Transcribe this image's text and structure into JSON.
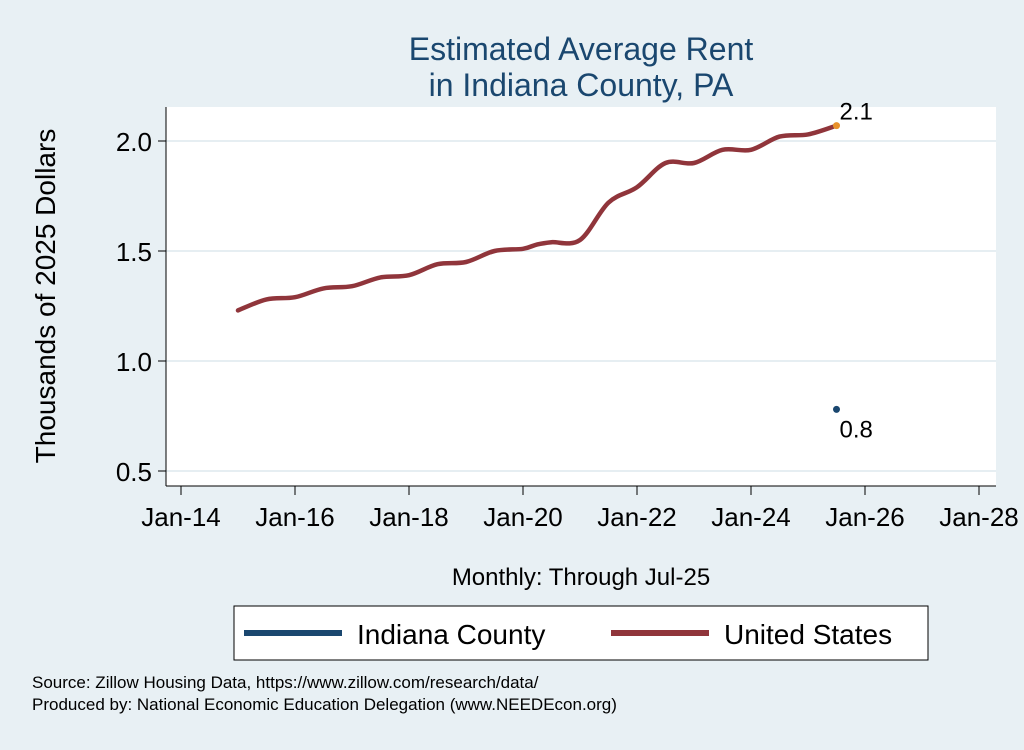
{
  "chart_data": {
    "type": "line",
    "title": [
      "Estimated Average Rent",
      "in Indiana County, PA"
    ],
    "xlabel": "Monthly: Through Jul-25",
    "ylabel": "Thousands of 2025 Dollars",
    "x_ticks": [
      "Jan-14",
      "Jan-16",
      "Jan-18",
      "Jan-20",
      "Jan-22",
      "Jan-24",
      "Jan-26",
      "Jan-28"
    ],
    "xlim": [
      "2014-01",
      "2028-01"
    ],
    "y_ticks": [
      "0.5",
      "1.0",
      "1.5",
      "2.0"
    ],
    "ylim": [
      0.45,
      2.15
    ],
    "grid": true,
    "legend_position": "bottom",
    "series": [
      {
        "name": "Indiana County",
        "color": "#1a476f",
        "points": [
          [
            "2025-07",
            0.78
          ]
        ],
        "end_label": "0.8"
      },
      {
        "name": "United States",
        "color": "#90353b",
        "end_marker_color": "#e8912b",
        "end_label": "2.1",
        "points": [
          [
            "2015-01",
            1.23
          ],
          [
            "2015-07",
            1.28
          ],
          [
            "2016-01",
            1.29
          ],
          [
            "2016-07",
            1.33
          ],
          [
            "2017-01",
            1.34
          ],
          [
            "2017-07",
            1.38
          ],
          [
            "2018-01",
            1.39
          ],
          [
            "2018-07",
            1.44
          ],
          [
            "2019-01",
            1.45
          ],
          [
            "2019-07",
            1.5
          ],
          [
            "2020-01",
            1.51
          ],
          [
            "2020-04",
            1.53
          ],
          [
            "2020-07",
            1.54
          ],
          [
            "2021-01",
            1.55
          ],
          [
            "2021-07",
            1.72
          ],
          [
            "2022-01",
            1.79
          ],
          [
            "2022-07",
            1.9
          ],
          [
            "2023-01",
            1.9
          ],
          [
            "2023-07",
            1.96
          ],
          [
            "2024-01",
            1.96
          ],
          [
            "2024-07",
            2.02
          ],
          [
            "2025-01",
            2.03
          ],
          [
            "2025-07",
            2.07
          ]
        ]
      }
    ]
  },
  "footer": {
    "source": "Source: Zillow Housing Data, https://www.zillow.com/research/data/",
    "produced_by": "Produced by: National Economic Education Delegation (www.NEEDEcon.org)"
  }
}
